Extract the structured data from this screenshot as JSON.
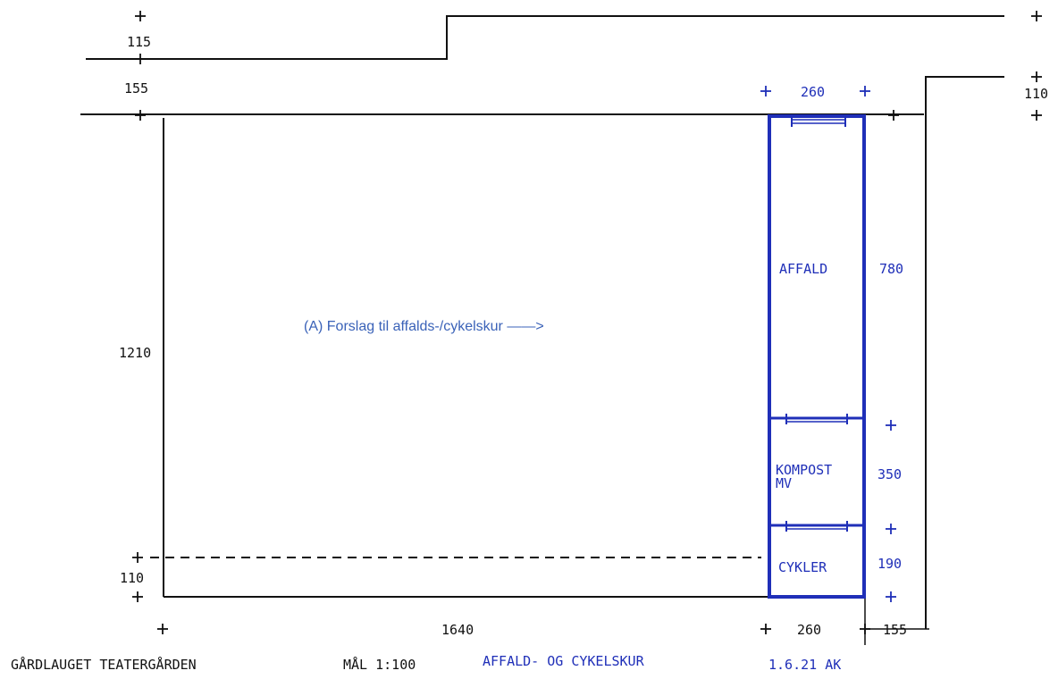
{
  "annotation": "(A) Forslag til affalds-/cykelskur ——>",
  "dimensions": {
    "top_left": "115",
    "left_offset": "155",
    "top_width": "260",
    "right_top": "110",
    "height_total": "1210",
    "bottom_left": "110",
    "bottom_width": "1640",
    "bottom_right_width": "260",
    "bottom_far_right": "155",
    "affald_height": "780",
    "kompost_height": "350",
    "cykler_height": "190"
  },
  "labels": {
    "affald": "AFFALD",
    "kompost_line1": "KOMPOST",
    "kompost_line2": "MV",
    "cykler": "CYKLER"
  },
  "footer": {
    "owner": "GÅRDLAUGET TEATERGÅRDEN",
    "scale": "MÅL 1:100",
    "title": "AFFALD- OG CYKELSKUR",
    "date": "1.6.21 AK"
  },
  "colors": {
    "ink": "#111111",
    "blue": "#1f2fb8",
    "typed_blue": "#3a62b8"
  }
}
